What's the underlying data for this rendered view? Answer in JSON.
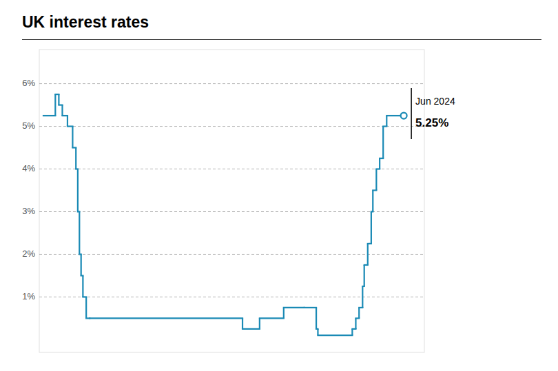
{
  "chart_data": {
    "type": "step",
    "title": "UK interest rates",
    "color": "#1a8ab5",
    "x": [
      2007.0,
      2007.58,
      2007.75,
      2007.92,
      2008.17,
      2008.42,
      2008.58,
      2008.67,
      2008.75,
      2008.83,
      2008.92,
      2009.08,
      2009.25,
      2016.67,
      2017.5,
      2018.67,
      2019.67,
      2020.25,
      2020.33,
      2022.0,
      2022.17,
      2022.33,
      2022.5,
      2022.58,
      2022.75,
      2022.83,
      2022.92,
      2023.0,
      2023.17,
      2023.33,
      2023.5,
      2023.67,
      2024.5
    ],
    "values": [
      5.25,
      5.75,
      5.5,
      5.25,
      5.0,
      4.5,
      4.0,
      3.0,
      2.0,
      1.5,
      1.0,
      0.5,
      0.5,
      0.25,
      0.5,
      0.75,
      0.75,
      0.25,
      0.1,
      0.25,
      0.5,
      0.75,
      1.25,
      1.75,
      2.25,
      2.25,
      3.0,
      3.5,
      4.0,
      4.25,
      5.0,
      5.25,
      5.25
    ],
    "xlim": [
      2006.8,
      2025.5
    ],
    "ylim": [
      -0.3,
      6.8
    ],
    "yticks": [
      {
        "value": 1,
        "label": "1%"
      },
      {
        "value": 2,
        "label": "2%"
      },
      {
        "value": 3,
        "label": "3%"
      },
      {
        "value": 4,
        "label": "4%"
      },
      {
        "value": 5,
        "label": "5%"
      },
      {
        "value": 6,
        "label": "6%"
      }
    ],
    "grid": true,
    "tick_labels": "y",
    "annotations": [
      "Jun 2024",
      "5.25%"
    ]
  }
}
